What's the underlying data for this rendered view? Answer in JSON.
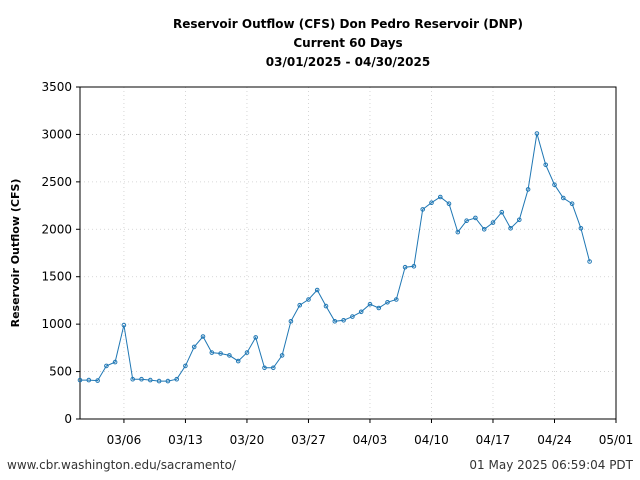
{
  "chart_data": {
    "type": "line",
    "title_lines": [
      "Reservoir Outflow (CFS) Don Pedro Reservoir (DNP)",
      "Current 60 Days",
      "03/01/2025 - 04/30/2025"
    ],
    "xlabel": "",
    "ylabel": "Reservoir Outflow (CFS)",
    "ylim": [
      0,
      3500
    ],
    "yticks": [
      0,
      500,
      1000,
      1500,
      2000,
      2500,
      3000,
      3500
    ],
    "xlim_days": [
      0,
      61
    ],
    "xticks": [
      {
        "day": 5,
        "label": "03/06"
      },
      {
        "day": 12,
        "label": "03/13"
      },
      {
        "day": 19,
        "label": "03/20"
      },
      {
        "day": 26,
        "label": "03/27"
      },
      {
        "day": 33,
        "label": "04/03"
      },
      {
        "day": 40,
        "label": "04/10"
      },
      {
        "day": 47,
        "label": "04/17"
      },
      {
        "day": 54,
        "label": "04/24"
      },
      {
        "day": 61,
        "label": "05/01"
      }
    ],
    "grid": true,
    "line_color": "#1f77b4",
    "series": [
      {
        "name": "Reservoir Outflow (CFS)",
        "x_days": [
          0,
          1,
          2,
          3,
          4,
          5,
          6,
          7,
          8,
          9,
          10,
          11,
          12,
          13,
          14,
          15,
          16,
          17,
          18,
          19,
          20,
          21,
          22,
          23,
          24,
          25,
          26,
          27,
          28,
          29,
          30,
          31,
          32,
          33,
          34,
          35,
          36,
          37,
          38,
          39,
          40,
          41,
          42,
          43,
          44,
          45,
          46,
          47,
          48,
          49,
          50,
          51,
          52,
          53,
          54,
          55,
          56,
          57,
          58
        ],
        "values": [
          410,
          410,
          405,
          560,
          600,
          990,
          420,
          420,
          410,
          400,
          400,
          420,
          560,
          760,
          870,
          700,
          690,
          670,
          610,
          700,
          860,
          540,
          540,
          670,
          1030,
          1200,
          1260,
          1360,
          1190,
          1030,
          1040,
          1080,
          1130,
          1210,
          1170,
          1230,
          1260,
          1600,
          1610,
          2210,
          2280,
          2340,
          2270,
          1970,
          2090,
          2120,
          2000,
          2070,
          2180,
          2010,
          2100,
          2420,
          3010,
          2680,
          2470,
          2330,
          2270,
          2010,
          1660
        ]
      }
    ]
  },
  "footer": {
    "left": "www.cbr.washington.edu/sacramento/",
    "right": "01 May 2025 06:59:04 PDT"
  }
}
